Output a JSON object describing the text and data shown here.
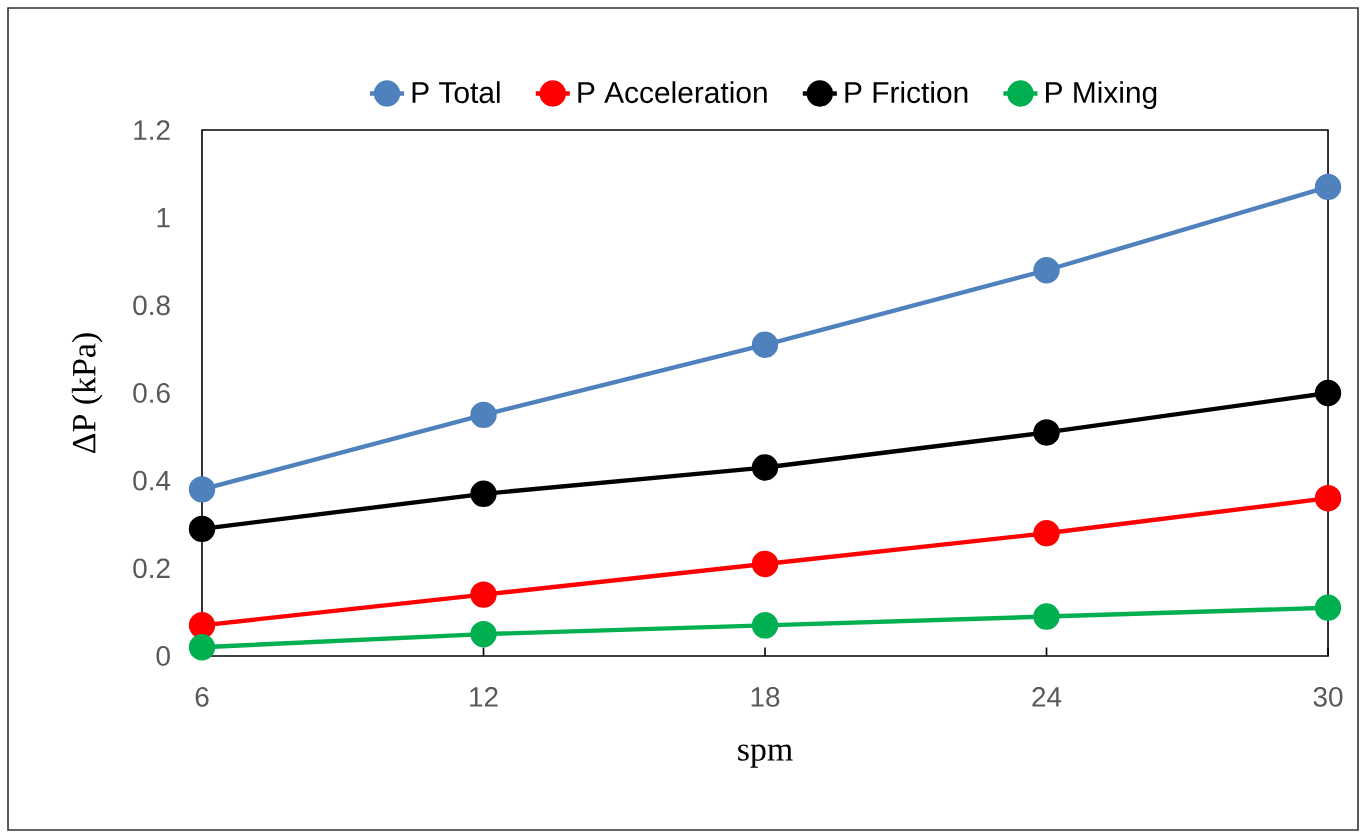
{
  "chart_data": {
    "type": "line",
    "xlabel": "spm",
    "ylabel": "ΔP (kPa)",
    "categories": [
      "6",
      "12",
      "18",
      "24",
      "30"
    ],
    "series": [
      {
        "name": "P Total",
        "color": "#4f81bd",
        "values": [
          0.38,
          0.55,
          0.71,
          0.88,
          1.07
        ]
      },
      {
        "name": "P Acceleration",
        "color": "#ff0000",
        "values": [
          0.07,
          0.14,
          0.21,
          0.28,
          0.36
        ]
      },
      {
        "name": "P Friction",
        "color": "#000000",
        "values": [
          0.29,
          0.37,
          0.43,
          0.51,
          0.6
        ]
      },
      {
        "name": "P Mixing",
        "color": "#00b050",
        "values": [
          0.02,
          0.05,
          0.07,
          0.09,
          0.11
        ]
      }
    ],
    "ylim": [
      0,
      1.2
    ],
    "yticks": [
      0,
      0.2,
      0.4,
      0.6,
      0.8,
      1,
      1.2
    ],
    "legend": "top",
    "marker": "circle",
    "line_style": "solid",
    "grid": false
  }
}
